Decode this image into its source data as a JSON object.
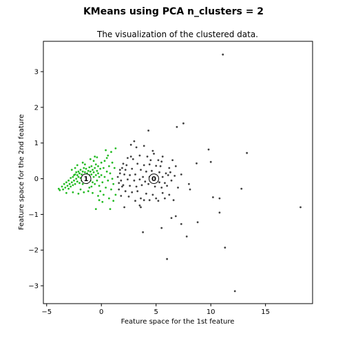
{
  "chart_data": {
    "type": "scatter",
    "suptitle": "KMeans  using PCA  n_clusters = 2",
    "title": "The visualization of the clustered data.",
    "xlabel": "Feature space for the 1st feature",
    "ylabel": "Feature space for the 2nd feature",
    "xlim": [
      -5.3,
      19.3
    ],
    "ylim": [
      -3.5,
      3.85
    ],
    "xticks": [
      -5,
      0,
      5,
      10,
      15
    ],
    "yticks": [
      -3,
      -2,
      -1,
      0,
      1,
      2,
      3
    ],
    "grid": false,
    "series": [
      {
        "cluster": "0",
        "color": "#404040",
        "centroid": [
          4.8,
          0.0
        ],
        "points": [
          [
            11.1,
            3.48
          ],
          [
            7.5,
            1.55
          ],
          [
            6.9,
            1.45
          ],
          [
            13.3,
            0.72
          ],
          [
            9.8,
            0.82
          ],
          [
            10.0,
            0.47
          ],
          [
            8.7,
            0.43
          ],
          [
            12.8,
            -0.28
          ],
          [
            18.2,
            -0.8
          ],
          [
            10.2,
            -0.52
          ],
          [
            10.8,
            -0.55
          ],
          [
            8.0,
            -0.15
          ],
          [
            8.1,
            -0.3
          ],
          [
            10.8,
            -0.95
          ],
          [
            8.8,
            -1.22
          ],
          [
            7.3,
            -1.27
          ],
          [
            7.8,
            -1.62
          ],
          [
            11.3,
            -1.93
          ],
          [
            6.0,
            -2.25
          ],
          [
            12.2,
            -3.15
          ],
          [
            6.8,
            -1.05
          ],
          [
            6.4,
            -1.1
          ],
          [
            5.5,
            -1.38
          ],
          [
            3.8,
            -1.5
          ],
          [
            5.2,
            -0.62
          ],
          [
            5.8,
            -0.55
          ],
          [
            3.6,
            -0.8
          ],
          [
            3.5,
            -0.75
          ],
          [
            2.1,
            -0.8
          ],
          [
            3.9,
            -0.6
          ],
          [
            4.3,
            1.35
          ],
          [
            3.0,
            1.05
          ],
          [
            2.7,
            0.95
          ],
          [
            3.2,
            0.88
          ],
          [
            3.9,
            0.92
          ],
          [
            4.7,
            0.78
          ],
          [
            4.8,
            0.7
          ],
          [
            3.5,
            0.65
          ],
          [
            2.4,
            0.58
          ],
          [
            2.9,
            0.55
          ],
          [
            4.5,
            0.52
          ],
          [
            5.2,
            0.52
          ],
          [
            5.5,
            0.48
          ],
          [
            6.5,
            0.52
          ],
          [
            2.0,
            0.42
          ],
          [
            2.3,
            0.38
          ],
          [
            3.3,
            0.42
          ],
          [
            3.9,
            0.38
          ],
          [
            4.4,
            0.4
          ],
          [
            5.0,
            0.36
          ],
          [
            5.4,
            0.35
          ],
          [
            6.2,
            0.3
          ],
          [
            1.9,
            0.3
          ],
          [
            2.2,
            0.25
          ],
          [
            2.8,
            0.28
          ],
          [
            3.6,
            0.25
          ],
          [
            4.1,
            0.2
          ],
          [
            4.6,
            0.22
          ],
          [
            5.3,
            0.18
          ],
          [
            5.9,
            0.15
          ],
          [
            6.3,
            0.18
          ],
          [
            7.3,
            0.12
          ],
          [
            1.7,
            0.15
          ],
          [
            2.1,
            0.12
          ],
          [
            2.6,
            0.1
          ],
          [
            3.1,
            0.12
          ],
          [
            3.8,
            0.05
          ],
          [
            4.4,
            0.05
          ],
          [
            5.0,
            0.08
          ],
          [
            5.6,
            0.05
          ],
          [
            6.1,
            0.1
          ],
          [
            6.7,
            0.08
          ],
          [
            1.8,
            -0.05
          ],
          [
            2.4,
            -0.02
          ],
          [
            3.0,
            -0.05
          ],
          [
            3.5,
            -0.02
          ],
          [
            4.0,
            -0.08
          ],
          [
            4.6,
            -0.05
          ],
          [
            5.3,
            -0.1
          ],
          [
            5.8,
            -0.12
          ],
          [
            6.4,
            -0.05
          ],
          [
            2.0,
            -0.18
          ],
          [
            2.6,
            -0.2
          ],
          [
            3.2,
            -0.22
          ],
          [
            3.7,
            -0.18
          ],
          [
            4.3,
            -0.15
          ],
          [
            4.9,
            -0.22
          ],
          [
            5.5,
            -0.25
          ],
          [
            6.0,
            -0.2
          ],
          [
            1.6,
            -0.3
          ],
          [
            2.2,
            -0.35
          ],
          [
            2.8,
            -0.38
          ],
          [
            3.3,
            -0.35
          ],
          [
            4.1,
            -0.42
          ],
          [
            4.7,
            -0.45
          ],
          [
            5.6,
            -0.4
          ],
          [
            6.2,
            -0.45
          ],
          [
            1.8,
            -0.48
          ],
          [
            2.5,
            -0.5
          ],
          [
            3.6,
            -0.55
          ],
          [
            4.4,
            -0.6
          ],
          [
            5.0,
            -0.55
          ],
          [
            6.6,
            -0.6
          ],
          [
            1.5,
            0.05
          ],
          [
            1.6,
            -0.12
          ],
          [
            1.7,
            0.25
          ],
          [
            1.9,
            -0.22
          ],
          [
            2.7,
            0.62
          ],
          [
            3.1,
            -0.62
          ],
          [
            4.2,
            0.62
          ],
          [
            5.6,
            0.62
          ],
          [
            6.8,
            0.35
          ],
          [
            7.0,
            -0.25
          ]
        ]
      },
      {
        "cluster": "1",
        "color": "#22bb22",
        "centroid": [
          -1.4,
          0.0
        ],
        "points": [
          [
            -3.8,
            -0.32
          ],
          [
            -3.6,
            -0.22
          ],
          [
            -3.5,
            -0.3
          ],
          [
            -3.4,
            -0.15
          ],
          [
            -3.3,
            -0.25
          ],
          [
            -3.2,
            -0.1
          ],
          [
            -3.1,
            -0.2
          ],
          [
            -3.0,
            -0.28
          ],
          [
            -3.0,
            -0.05
          ],
          [
            -2.9,
            -0.15
          ],
          [
            -2.8,
            -0.22
          ],
          [
            -2.8,
            0.02
          ],
          [
            -2.7,
            -0.1
          ],
          [
            -2.6,
            -0.18
          ],
          [
            -2.6,
            0.05
          ],
          [
            -2.5,
            -0.05
          ],
          [
            -2.5,
            0.1
          ],
          [
            -2.4,
            -0.15
          ],
          [
            -2.4,
            0.12
          ],
          [
            -2.3,
            0.0
          ],
          [
            -2.3,
            0.18
          ],
          [
            -2.2,
            -0.08
          ],
          [
            -2.2,
            0.1
          ],
          [
            -2.1,
            0.05
          ],
          [
            -2.1,
            0.2
          ],
          [
            -2.0,
            -0.12
          ],
          [
            -2.0,
            0.15
          ],
          [
            -1.9,
            0.02
          ],
          [
            -1.9,
            0.25
          ],
          [
            -1.8,
            -0.05
          ],
          [
            -1.8,
            0.12
          ],
          [
            -1.7,
            0.2
          ],
          [
            -1.7,
            -0.15
          ],
          [
            -1.6,
            0.08
          ],
          [
            -1.6,
            0.3
          ],
          [
            -1.5,
            -0.08
          ],
          [
            -1.5,
            0.18
          ],
          [
            -1.4,
            0.05
          ],
          [
            -1.4,
            0.28
          ],
          [
            -1.3,
            -0.12
          ],
          [
            -1.3,
            0.15
          ],
          [
            -1.2,
            0.22
          ],
          [
            -1.2,
            -0.02
          ],
          [
            -1.1,
            0.1
          ],
          [
            -1.1,
            0.32
          ],
          [
            -1.0,
            -0.05
          ],
          [
            -1.0,
            0.2
          ],
          [
            -0.9,
            0.12
          ],
          [
            -0.9,
            0.35
          ],
          [
            -0.8,
            -0.1
          ],
          [
            -0.8,
            0.25
          ],
          [
            -0.7,
            0.05
          ],
          [
            -0.7,
            0.18
          ],
          [
            -0.6,
            0.3
          ],
          [
            -0.6,
            -0.15
          ],
          [
            -0.5,
            0.1
          ],
          [
            -0.5,
            0.4
          ],
          [
            -0.4,
            -0.05
          ],
          [
            -0.4,
            0.22
          ],
          [
            -0.3,
            0.15
          ],
          [
            -0.3,
            0.35
          ],
          [
            -0.2,
            -0.2
          ],
          [
            -0.2,
            0.05
          ],
          [
            -0.1,
            0.28
          ],
          [
            -0.1,
            -0.35
          ],
          [
            0.0,
            0.1
          ],
          [
            0.0,
            0.45
          ],
          [
            0.1,
            -0.1
          ],
          [
            0.2,
            0.3
          ],
          [
            0.2,
            -0.45
          ],
          [
            0.3,
            0.5
          ],
          [
            0.3,
            0.05
          ],
          [
            0.4,
            -0.25
          ],
          [
            0.5,
            0.2
          ],
          [
            0.5,
            0.58
          ],
          [
            0.6,
            -0.05
          ],
          [
            0.7,
            0.35
          ],
          [
            0.7,
            -0.55
          ],
          [
            0.8,
            0.15
          ],
          [
            0.9,
            -0.3
          ],
          [
            1.0,
            0.45
          ],
          [
            1.0,
            0.0
          ],
          [
            1.1,
            -0.15
          ],
          [
            1.2,
            0.3
          ],
          [
            1.3,
            -0.45
          ],
          [
            1.3,
            0.85
          ],
          [
            0.9,
            0.75
          ],
          [
            0.4,
            0.8
          ],
          [
            -0.6,
            0.62
          ],
          [
            -1.0,
            0.55
          ],
          [
            0.1,
            -0.65
          ],
          [
            -0.5,
            -0.85
          ],
          [
            -0.2,
            -0.6
          ],
          [
            0.8,
            -0.85
          ],
          [
            1.1,
            -0.62
          ],
          [
            -1.6,
            -0.38
          ],
          [
            -2.1,
            -0.42
          ],
          [
            -2.6,
            -0.38
          ],
          [
            -1.2,
            -0.35
          ],
          [
            -0.8,
            -0.4
          ],
          [
            -3.2,
            -0.4
          ],
          [
            -3.9,
            -0.28
          ],
          [
            -1.7,
            0.45
          ],
          [
            -2.2,
            0.38
          ],
          [
            -0.3,
            -0.48
          ],
          [
            -1.5,
            0.4
          ],
          [
            -2.7,
            0.25
          ],
          [
            -1.1,
            -0.25
          ],
          [
            -0.7,
            0.5
          ],
          [
            -0.9,
            -0.22
          ],
          [
            -1.9,
            -0.3
          ],
          [
            -2.4,
            0.3
          ],
          [
            -0.4,
            0.6
          ],
          [
            0.6,
            0.65
          ]
        ]
      }
    ]
  }
}
